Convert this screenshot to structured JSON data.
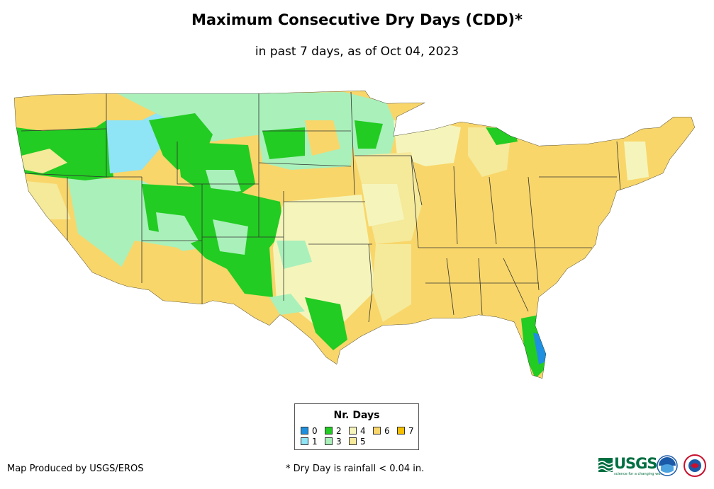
{
  "title": "Maximum Consecutive Dry Days (CDD)*",
  "subtitle": "in past 7 days, as of Oct 04, 2023",
  "legend": {
    "title": "Nr. Days",
    "items": [
      {
        "label": "0",
        "color": "#1e90e0"
      },
      {
        "label": "1",
        "color": "#8fe4f5"
      },
      {
        "label": "2",
        "color": "#22cc22"
      },
      {
        "label": "3",
        "color": "#aaf0bb"
      },
      {
        "label": "4",
        "color": "#f5f5bb"
      },
      {
        "label": "5",
        "color": "#f5e99a"
      },
      {
        "label": "6",
        "color": "#f8d66a"
      },
      {
        "label": "7",
        "color": "#f5c000"
      }
    ]
  },
  "credit": "Map Produced by USGS/EROS",
  "footnote": "* Dry Day is rainfall < 0.04 in.",
  "logos": {
    "usgs": "USGS",
    "usgs_tagline": "science for a changing world",
    "usgs_icon": "usgs-wave-icon",
    "noaa_icon": "noaa-icon",
    "nws_icon": "nws-icon"
  }
}
